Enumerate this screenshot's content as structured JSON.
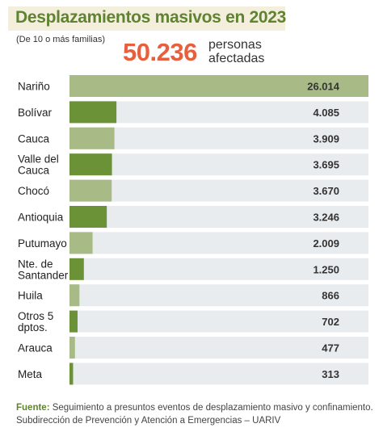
{
  "header": {
    "title": "Desplazamientos masivos en 2023",
    "subtitle": "(De 10 o más familias)",
    "total": "50.236",
    "total_label": "personas afectadas"
  },
  "chart_data": {
    "type": "bar",
    "orientation": "horizontal",
    "categories": [
      "Nariño",
      "Bolívar",
      "Cauca",
      "Valle del Cauca",
      "Chocó",
      "Antioquia",
      "Putumayo",
      "Nte. de Santander",
      "Huila",
      "Otros 5 dptos.",
      "Arauca",
      "Meta"
    ],
    "category_lines": [
      [
        "Nariño"
      ],
      [
        "Bolívar"
      ],
      [
        "Cauca"
      ],
      [
        "Valle del",
        "Cauca"
      ],
      [
        "Chocó"
      ],
      [
        "Antioquia"
      ],
      [
        "Putumayo"
      ],
      [
        "Nte. de",
        "Santander"
      ],
      [
        "Huila"
      ],
      [
        "Otros 5",
        "dptos."
      ],
      [
        "Arauca"
      ],
      [
        "Meta"
      ]
    ],
    "values": [
      26014,
      4085,
      3909,
      3695,
      3670,
      3246,
      2009,
      1250,
      866,
      702,
      477,
      313
    ],
    "value_labels": [
      "26.014",
      "4.085",
      "3.909",
      "3.695",
      "3.670",
      "3.246",
      "2.009",
      "1.250",
      "866",
      "702",
      "477",
      "313"
    ],
    "xlim": [
      0,
      26014
    ],
    "colors": {
      "dark": "#6b9237",
      "light": "#a8bb86",
      "track": "#e8ecef"
    }
  },
  "footer": {
    "source_label": "Fuente:",
    "source_text": " Seguimiento a presuntos eventos de desplazamiento masivo y confinamiento. Subdirección de Prevención y Atención a Emergencias – UARIV"
  }
}
